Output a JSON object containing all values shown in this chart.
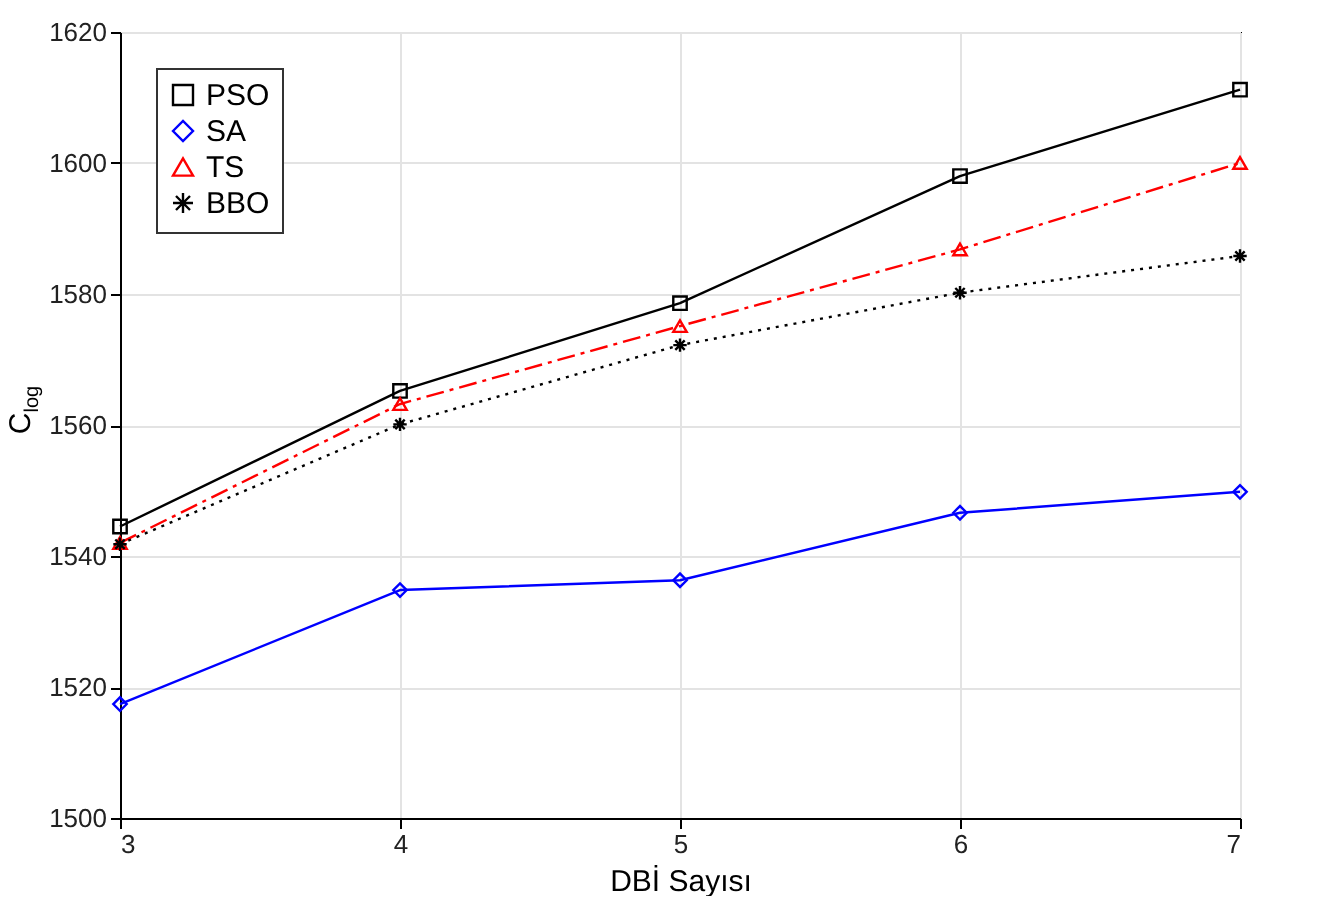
{
  "chart_data": {
    "type": "line",
    "xlabel": "DBİ Sayısı",
    "ylabel": "C$_{log}$",
    "x": [
      3,
      4,
      5,
      6,
      7
    ],
    "series": [
      {
        "name": "PSO",
        "color": "#000000",
        "marker": "square",
        "line_style": "solid",
        "values": [
          1544.5,
          1565.2,
          1578.6,
          1598,
          1611.2
        ]
      },
      {
        "name": "SA",
        "color": "#0000ff",
        "marker": "diamond",
        "line_style": "solid",
        "values": [
          1517.4,
          1534.8,
          1536.3,
          1546.6,
          1549.8
        ]
      },
      {
        "name": "TS",
        "color": "#ff0000",
        "marker": "triangle",
        "line_style": "dashed",
        "values": [
          1542,
          1563.2,
          1575.1,
          1586.8,
          1600
        ]
      },
      {
        "name": "BBO",
        "color": "#000000",
        "marker": "cross",
        "line_style": "dotted",
        "values": [
          1541.8,
          1560.1,
          1572.2,
          1580.2,
          1585.8
        ]
      }
    ],
    "xlim": [
      3,
      7
    ],
    "ylim": [
      1500,
      1620
    ],
    "xticks": [
      3,
      4,
      5,
      6,
      7
    ],
    "yticks": [
      1500,
      1520,
      1540,
      1560,
      1580,
      1600,
      1620
    ],
    "grid": true,
    "legend": "top left"
  }
}
